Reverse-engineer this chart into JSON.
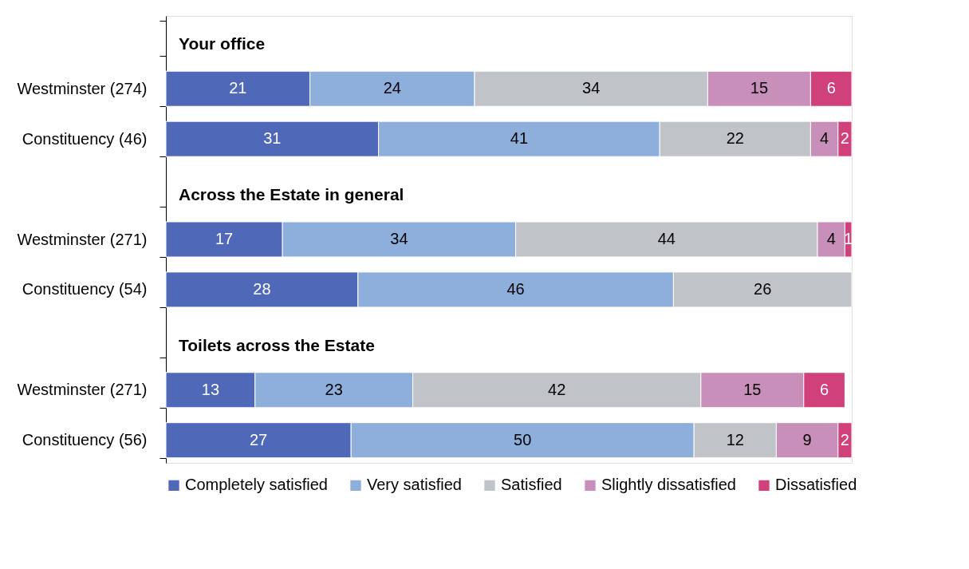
{
  "chart_data": {
    "type": "bar",
    "orientation": "horizontal",
    "stacked": true,
    "data_labels": true,
    "grid": false,
    "legend": "bottom",
    "categories": [
      null,
      "Westminster (274)",
      "Constituency (46)",
      null,
      "Westminster (271)",
      "Constituency (54)",
      null,
      "Westminster (271)",
      "Constituency (56)"
    ],
    "annotations": [
      "Your office",
      "Across the Estate in general",
      "Toilets across the Estate"
    ],
    "series": [
      {
        "name": "Completely satisfied",
        "color": "#5068b8",
        "values": [
          null,
          21,
          31,
          null,
          17,
          28,
          null,
          13,
          27
        ]
      },
      {
        "name": "Very satisfied",
        "color": "#8eaedb",
        "values": [
          null,
          24,
          41,
          null,
          34,
          46,
          null,
          23,
          50
        ]
      },
      {
        "name": "Satisfied",
        "color": "#c0c3c8",
        "values": [
          null,
          34,
          22,
          null,
          44,
          26,
          null,
          42,
          12
        ]
      },
      {
        "name": "Slightly dissatisfied",
        "color": "#c88fba",
        "values": [
          null,
          15,
          4,
          null,
          4,
          null,
          null,
          15,
          9
        ]
      },
      {
        "name": "Dissatisfied",
        "color": "#d0407a",
        "values": [
          null,
          6,
          2,
          null,
          1,
          null,
          null,
          6,
          2
        ]
      }
    ]
  }
}
